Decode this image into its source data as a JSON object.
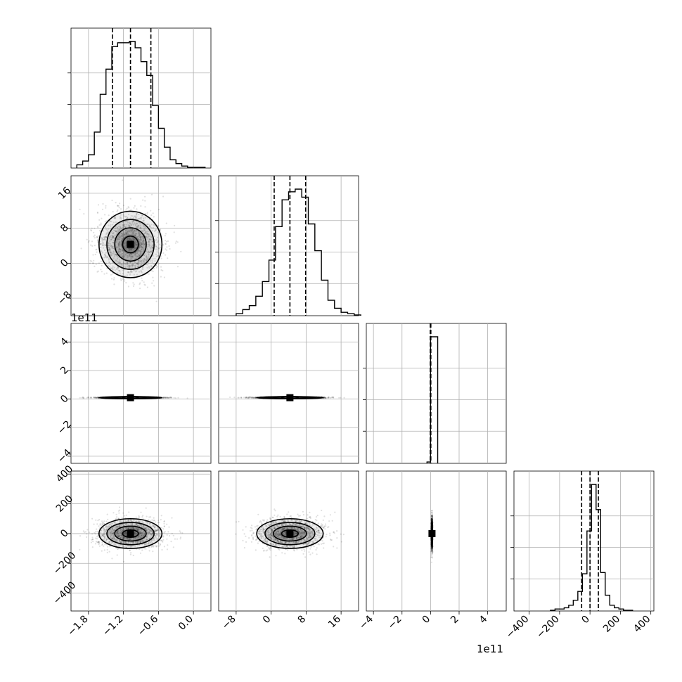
{
  "chart_data": [
    {
      "type": "histogram",
      "panel": "hist-0",
      "title": "",
      "xlabel": "",
      "ylabel": "",
      "xlim": [
        -2.1,
        0.3
      ],
      "xticks": [
        -1.8,
        -1.2,
        -0.6,
        0.0
      ],
      "xtick_labels": [
        "−1.8",
        "−1.2",
        "−0.6",
        "0.0"
      ],
      "bin_edges": [
        -2.0,
        -1.9,
        -1.8,
        -1.7,
        -1.6,
        -1.5,
        -1.4,
        -1.3,
        -1.2,
        -1.1,
        -1.0,
        -0.9,
        -0.8,
        -0.7,
        -0.6,
        -0.5,
        -0.4,
        -0.3,
        -0.2,
        -0.1,
        0.0,
        0.1,
        0.2
      ],
      "counts": [
        2,
        5,
        10,
        28,
        58,
        78,
        96,
        99,
        99,
        100,
        95,
        84,
        73,
        49,
        31,
        16,
        6,
        3,
        1,
        0,
        0,
        0
      ],
      "quantiles": [
        -1.39,
        -1.08,
        -0.73
      ]
    },
    {
      "type": "scatter",
      "panel": "scatter-1-0",
      "title": "",
      "xlabel": "",
      "ylabel": "",
      "xlim": [
        -2.1,
        0.3
      ],
      "ylim": [
        -12,
        20
      ],
      "yticks": [
        -8,
        0,
        8,
        16
      ],
      "ytick_labels": [
        "−8",
        "0",
        "8",
        "16"
      ],
      "center": [
        -1.08,
        4.3
      ],
      "spread": [
        0.27,
        3.8
      ],
      "density_peak": [
        -1.0,
        4.3
      ]
    },
    {
      "type": "histogram",
      "panel": "hist-1",
      "title": "",
      "xlabel": "",
      "ylabel": "",
      "xlim": [
        -12,
        20
      ],
      "bin_edges": [
        -8,
        -6.5,
        -5,
        -3.5,
        -2,
        -0.5,
        1,
        2.5,
        4,
        5.5,
        7,
        8.5,
        10,
        11.5,
        13,
        14.5,
        16,
        17.5,
        19,
        20.5
      ],
      "counts": [
        1,
        4,
        7,
        14,
        25,
        41,
        66,
        86,
        92,
        94,
        88,
        68,
        48,
        26,
        11,
        5,
        2,
        1,
        0
      ],
      "quantiles": [
        0.7,
        4.3,
        7.9
      ]
    },
    {
      "type": "scatter",
      "panel": "scatter-2-0",
      "title": "",
      "xlabel": "",
      "ylabel": "",
      "xlim": [
        -2.1,
        0.3
      ],
      "ylim": [
        -4.5,
        5.3
      ],
      "yticks": [
        -4,
        -2,
        0,
        2,
        4
      ],
      "ytick_labels": [
        "−4",
        "−2",
        "0",
        "2",
        "4"
      ],
      "y_offset_label": "1e11",
      "center": [
        -1.08,
        0.1
      ],
      "spread": [
        0.27,
        0.02
      ]
    },
    {
      "type": "scatter",
      "panel": "scatter-2-1",
      "title": "",
      "xlabel": "",
      "ylabel": "",
      "xlim": [
        -12,
        20
      ],
      "ylim": [
        -4.5,
        5.3
      ],
      "center": [
        4.3,
        0.1
      ],
      "spread": [
        3.8,
        0.02
      ]
    },
    {
      "type": "histogram",
      "panel": "hist-2",
      "title": "",
      "xlabel": "",
      "ylabel": "",
      "xlim": [
        -4.5,
        5.3
      ],
      "bin_edges": [
        -0.25,
        0.0,
        0.5
      ],
      "counts": [
        0.5,
        100
      ],
      "quantiles": [
        -0.02,
        0.0,
        0.02
      ]
    },
    {
      "type": "scatter",
      "panel": "scatter-3-0",
      "title": "",
      "xlabel": "",
      "ylabel": "",
      "xlim": [
        -2.1,
        0.3
      ],
      "ylim": [
        -520,
        420
      ],
      "xticks": [
        -1.8,
        -1.2,
        -0.6,
        0.0
      ],
      "xtick_labels": [
        "−1.8",
        "−1.2",
        "−0.6",
        "0.0"
      ],
      "yticks": [
        -400,
        -200,
        0,
        200,
        400
      ],
      "ytick_labels": [
        "−400",
        "−200",
        "0",
        "200",
        "400"
      ],
      "center": [
        -1.08,
        0
      ],
      "spread": [
        0.27,
        50
      ]
    },
    {
      "type": "scatter",
      "panel": "scatter-3-1",
      "title": "",
      "xlabel": "",
      "ylabel": "",
      "xlim": [
        -12,
        20
      ],
      "ylim": [
        -520,
        420
      ],
      "xticks": [
        -8,
        0,
        8,
        16
      ],
      "xtick_labels": [
        "−8",
        "0",
        "8",
        "16"
      ],
      "center": [
        4.3,
        0
      ],
      "spread": [
        3.8,
        50
      ]
    },
    {
      "type": "scatter",
      "panel": "scatter-3-2",
      "title": "",
      "xlabel": "",
      "ylabel": "",
      "xlim": [
        -4.5,
        5.3
      ],
      "ylim": [
        -520,
        420
      ],
      "xticks": [
        -4,
        -2,
        0,
        2,
        4
      ],
      "xtick_labels": [
        "−4",
        "−2",
        "0",
        "2",
        "4"
      ],
      "x_offset_label": "1e11",
      "center": [
        0.1,
        0
      ],
      "spread": [
        0.02,
        50
      ]
    },
    {
      "type": "histogram",
      "panel": "hist-3",
      "title": "",
      "xlabel": "",
      "ylabel": "",
      "xlim": [
        -500,
        420
      ],
      "xticks": [
        -400,
        -200,
        0,
        200,
        400
      ],
      "xtick_labels": [
        "−400",
        "−200",
        "0",
        "200",
        "400"
      ],
      "bin_edges": [
        -260,
        -230,
        -200,
        -170,
        -140,
        -110,
        -80,
        -50,
        -20,
        10,
        40,
        70,
        100,
        130,
        160,
        190,
        220,
        250,
        280
      ],
      "counts": [
        0,
        1,
        1,
        2,
        4,
        8,
        15,
        29,
        63,
        100,
        80,
        30,
        12,
        4,
        2,
        1,
        0,
        0
      ],
      "quantiles": [
        -55,
        0,
        55
      ]
    }
  ]
}
